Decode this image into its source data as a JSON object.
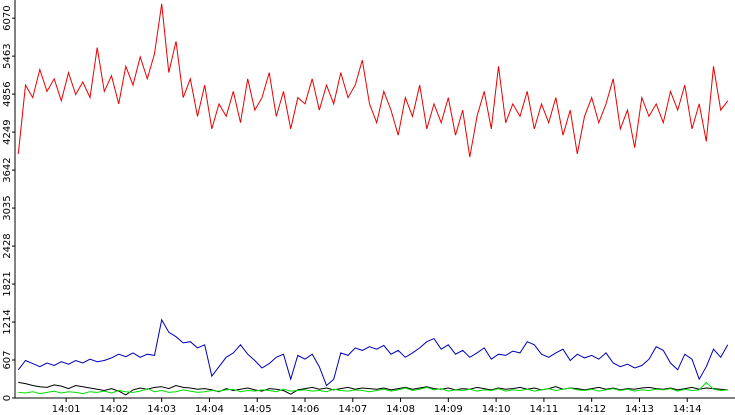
{
  "chart_data": {
    "type": "line",
    "x": [
      0,
      0.15,
      0.3,
      0.45,
      0.6,
      0.75,
      0.9,
      1.05,
      1.2,
      1.35,
      1.5,
      1.65,
      1.8,
      1.95,
      2.1,
      2.25,
      2.4,
      2.55,
      2.7,
      2.85,
      3,
      3.15,
      3.3,
      3.45,
      3.6,
      3.75,
      3.9,
      4.05,
      4.2,
      4.35,
      4.5,
      4.65,
      4.8,
      4.95,
      5.1,
      5.25,
      5.4,
      5.55,
      5.7,
      5.85,
      6,
      6.15,
      6.3,
      6.45,
      6.6,
      6.75,
      6.9,
      7.05,
      7.2,
      7.35,
      7.5,
      7.65,
      7.8,
      7.95,
      8.1,
      8.25,
      8.4,
      8.55,
      8.7,
      8.85,
      9,
      9.15,
      9.3,
      9.45,
      9.6,
      9.75,
      9.9,
      10.05,
      10.2,
      10.35,
      10.5,
      10.65,
      10.8,
      10.95,
      11.1,
      11.25,
      11.4,
      11.55,
      11.7,
      11.85,
      12,
      12.15,
      12.3,
      12.45,
      12.6,
      12.75,
      12.9,
      13.05,
      13.2,
      13.35,
      13.5,
      13.65,
      13.8,
      13.95,
      14.1,
      14.25,
      14.4,
      14.55,
      14.7,
      14.85
    ],
    "series": [
      {
        "color": "#e80000",
        "values": [
          3900,
          5000,
          4800,
          5250,
          4900,
          5100,
          4750,
          5200,
          4850,
          5050,
          4800,
          5600,
          4900,
          5150,
          4700,
          5300,
          5000,
          5450,
          5100,
          5500,
          6300,
          5200,
          5700,
          4800,
          5100,
          4500,
          5000,
          4300,
          4700,
          4500,
          4900,
          4400,
          5100,
          4600,
          4800,
          5200,
          4500,
          4900,
          4300,
          4800,
          4700,
          5100,
          4600,
          5000,
          4700,
          5200,
          4800,
          5000,
          5400,
          4700,
          4400,
          4900,
          4600,
          4200,
          4800,
          4500,
          5000,
          4300,
          4700,
          4400,
          4800,
          4200,
          4600,
          3850,
          4500,
          4900,
          4300,
          5300,
          4400,
          4700,
          4500,
          4900,
          4300,
          4700,
          4400,
          4800,
          4200,
          4600,
          3900,
          4500,
          4800,
          4400,
          4700,
          5100,
          4300,
          4600,
          4000,
          4800,
          4500,
          4700,
          4400,
          4900,
          4600,
          5000,
          4300,
          4700,
          4100,
          5300,
          4600,
          4750
        ]
      },
      {
        "color": "#0000b8",
        "values": [
          450,
          600,
          550,
          500,
          560,
          520,
          580,
          540,
          600,
          560,
          620,
          580,
          600,
          640,
          700,
          660,
          720,
          650,
          700,
          680,
          1250,
          1050,
          980,
          880,
          900,
          800,
          850,
          350,
          500,
          650,
          720,
          850,
          700,
          600,
          480,
          550,
          650,
          700,
          300,
          680,
          620,
          700,
          500,
          200,
          300,
          720,
          680,
          800,
          760,
          820,
          780,
          840,
          700,
          760,
          650,
          720,
          800,
          900,
          950,
          780,
          850,
          700,
          760,
          650,
          720,
          800,
          620,
          700,
          680,
          750,
          720,
          900,
          850,
          700,
          650,
          720,
          780,
          600,
          700,
          640,
          680,
          620,
          720,
          560,
          500,
          540,
          480,
          520,
          620,
          820,
          760,
          560,
          450,
          700,
          620,
          300,
          500,
          780,
          650,
          850
        ]
      },
      {
        "color": "#000000",
        "values": [
          250,
          230,
          200,
          180,
          170,
          210,
          190,
          150,
          200,
          180,
          160,
          140,
          120,
          150,
          110,
          50,
          130,
          160,
          140,
          170,
          180,
          150,
          200,
          170,
          160,
          140,
          150,
          130,
          100,
          150,
          120,
          140,
          160,
          130,
          110,
          150,
          140,
          120,
          60,
          130,
          150,
          170,
          140,
          160,
          130,
          150,
          170,
          140,
          160,
          150,
          140,
          160,
          130,
          150,
          170,
          140,
          160,
          180,
          150,
          140,
          160,
          130,
          150,
          140,
          170,
          150,
          130,
          160,
          140,
          150,
          170,
          140,
          160,
          130,
          150,
          180,
          140,
          160,
          150,
          130,
          150,
          170,
          140,
          160,
          130,
          150,
          140,
          160,
          170,
          150,
          140,
          160,
          130,
          150,
          170,
          140,
          160,
          150,
          140,
          130
        ]
      },
      {
        "color": "#00dd00",
        "values": [
          90,
          80,
          100,
          70,
          90,
          110,
          80,
          100,
          90,
          70,
          100,
          90,
          110,
          80,
          120,
          100,
          90,
          110,
          150,
          100,
          120,
          90,
          100,
          130,
          110,
          90,
          100,
          120,
          110,
          130,
          140,
          100,
          120,
          110,
          130,
          120,
          100,
          140,
          110,
          120,
          130,
          110,
          120,
          100,
          140,
          120,
          110,
          130,
          120,
          100,
          120,
          140,
          110,
          130,
          160,
          120,
          140,
          170,
          130,
          150,
          110,
          130,
          120,
          140,
          110,
          130,
          120,
          150,
          110,
          130,
          120,
          140,
          110,
          130,
          150,
          120,
          140,
          160,
          130,
          120,
          140,
          110,
          130,
          150,
          120,
          140,
          110,
          130,
          120,
          140,
          130,
          150,
          110,
          140,
          120,
          130,
          250,
          140,
          120,
          130
        ]
      }
    ],
    "xlim": [
      -0.07,
      15.0
    ],
    "xticks": [
      {
        "value": 1,
        "label": "14:01"
      },
      {
        "value": 2,
        "label": "14:02"
      },
      {
        "value": 3,
        "label": "14:03"
      },
      {
        "value": 4,
        "label": "14:04"
      },
      {
        "value": 5,
        "label": "14:05"
      },
      {
        "value": 6,
        "label": "14:06"
      },
      {
        "value": 7,
        "label": "14:07"
      },
      {
        "value": 8,
        "label": "14:08"
      },
      {
        "value": 9,
        "label": "14:09"
      },
      {
        "value": 10,
        "label": "14:10"
      },
      {
        "value": 11,
        "label": "14:11"
      },
      {
        "value": 12,
        "label": "14:12"
      },
      {
        "value": 13,
        "label": "14:13"
      },
      {
        "value": 14,
        "label": "14:14"
      }
    ],
    "ylim": [
      0,
      6360
    ],
    "yticks": [
      0,
      607,
      1214,
      1821,
      2428,
      3035,
      3642,
      4249,
      4856,
      5463,
      6070
    ]
  }
}
